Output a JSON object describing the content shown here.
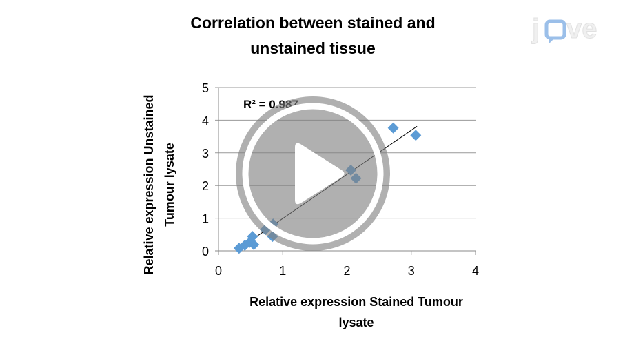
{
  "player": {
    "logo": "jove",
    "play_icon": "play-icon",
    "accent": "#8ab4e6"
  },
  "chart_data": {
    "type": "scatter",
    "title": "Correlation between stained and unstained tissue",
    "title_lines": [
      "Correlation between stained and",
      "unstained tissue"
    ],
    "xlabel_lines": [
      "Relative expression Stained Tumour",
      "lysate"
    ],
    "ylabel_lines": [
      "Relative expression Unstained",
      "Tumour lysate"
    ],
    "xlim": [
      0,
      4
    ],
    "ylim": [
      0,
      5
    ],
    "xticks": [
      "0",
      "1",
      "2",
      "3",
      "4"
    ],
    "yticks": [
      "0",
      "1",
      "2",
      "3",
      "4",
      "5"
    ],
    "grid": "horizontal",
    "marker": "diamond",
    "color": "#5b9bd5",
    "points": [
      [
        0.32,
        0.08
      ],
      [
        0.41,
        0.17
      ],
      [
        0.48,
        0.25
      ],
      [
        0.53,
        0.44
      ],
      [
        0.55,
        0.19
      ],
      [
        0.73,
        0.65
      ],
      [
        0.84,
        0.44
      ],
      [
        0.85,
        0.82
      ],
      [
        2.06,
        2.47
      ],
      [
        2.14,
        2.22
      ],
      [
        2.72,
        3.76
      ],
      [
        3.07,
        3.54
      ]
    ],
    "trendline": {
      "slope": 1.35,
      "intercept": -0.36,
      "x_range": [
        0.3,
        3.09
      ]
    },
    "annotation": "R² = 0.987"
  }
}
